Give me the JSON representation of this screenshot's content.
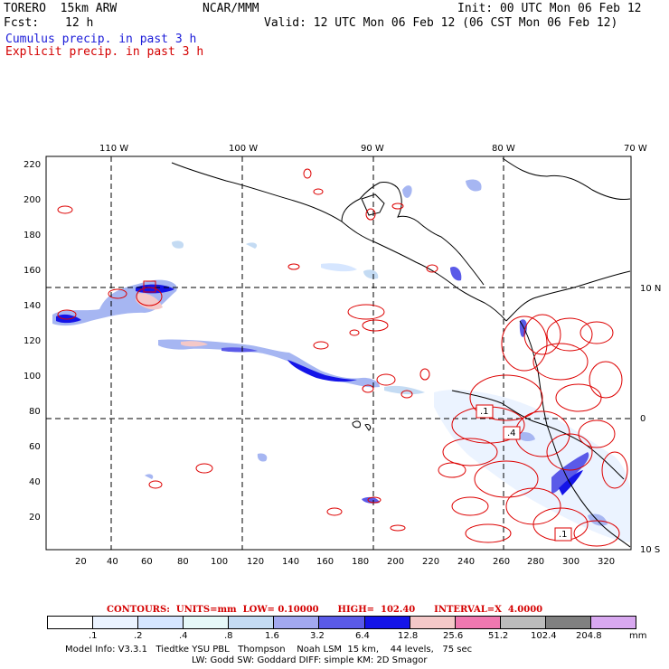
{
  "header": {
    "model": "TORERO  15km ARW",
    "org": "NCAR/MMM",
    "init": "Init: 00 UTC Mon 06 Feb 12",
    "fcst_label": "Fcst:",
    "fcst_value": "12 h",
    "valid": "Valid: 12 UTC Mon 06 Feb 12 (06 CST Mon 06 Feb 12)",
    "field1": "Cumulus precip. in past 3 h",
    "field2": "Explicit precip. in past 3 h"
  },
  "colors": {
    "field1": "#1a1ad8",
    "field2": "#d40000",
    "coast": "#000000",
    "contour": "#dd0000"
  },
  "map": {
    "lon_labels": [
      "110 W",
      "100 W",
      "90 W",
      "80 W",
      "70 W"
    ],
    "lat_labels": [
      "10 N",
      "0",
      "10 S"
    ],
    "y_ticks": [
      "220",
      "200",
      "180",
      "160",
      "140",
      "120",
      "100",
      "80",
      "60",
      "40",
      "20"
    ],
    "x_ticks": [
      "20",
      "40",
      "60",
      "80",
      "100",
      "120",
      "140",
      "160",
      "180",
      "200",
      "220",
      "240",
      "260",
      "280",
      "300",
      "320"
    ],
    "box_labels": [
      ".1",
      ".4",
      ".1"
    ]
  },
  "contours_info": "CONTOURS:  UNITS=mm  LOW= 0.10000      HIGH=  102.40      INTERVAL=X  4.0000",
  "colorbar": {
    "labels": [
      ".1",
      ".2",
      ".4",
      ".8",
      "1.6",
      "3.2",
      "6.4",
      "12.8",
      "25.6",
      "51.2",
      "102.4",
      "204.8"
    ],
    "colors": [
      "#ffffff",
      "#ebf3ff",
      "#d6e6ff",
      "#e6f8f8",
      "#c4dbf3",
      "#a2a8f0",
      "#5a5ae8",
      "#1414e8",
      "#f4c8c8",
      "#f078b0",
      "#bcbcbc",
      "#808080",
      "#d8a8f0"
    ],
    "unit": "mm"
  },
  "footer": {
    "line1": "Model Info: V3.3.1   Tiedtke YSU PBL   Thompson    Noah LSM  15 km,    44 levels,   75 sec",
    "line2": "LW: Godd SW: Goddard DIFF: simple KM: 2D Smagor"
  }
}
